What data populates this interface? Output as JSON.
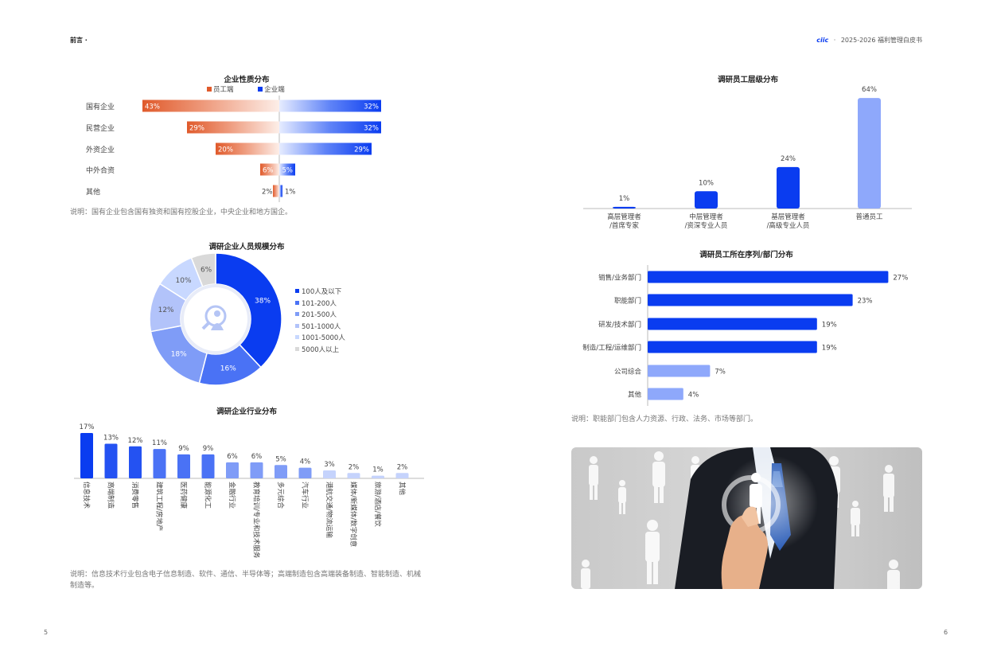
{
  "header": {
    "left": "前言 ·",
    "brand": "ciic",
    "dot": "·",
    "right": "2025-2026 福利管理白皮书"
  },
  "footer": {
    "page_left": "5",
    "page_right": "6"
  },
  "enterprise_nature": {
    "title": "企业性质分布",
    "legend_employee": "员工端",
    "legend_company": "企业端",
    "note": "说明：国有企业包含国有独资和国有控股企业，中央企业和地方国企。",
    "categories": [
      "国有企业",
      "民营企业",
      "外资企业",
      "中外合资",
      "其他"
    ],
    "employee_labels": [
      "43%",
      "29%",
      "20%",
      "6%",
      "2%"
    ],
    "company_labels": [
      "32%",
      "32%",
      "29%",
      "5%",
      "1%"
    ]
  },
  "company_size": {
    "title": "调研企业人员规模分布",
    "slice_labels": [
      "38%",
      "16%",
      "18%",
      "12%",
      "10%",
      "6%"
    ],
    "legend": [
      "100人及以下",
      "101-200人",
      "201-500人",
      "501-1000人",
      "1001-5000人",
      "5000人以上"
    ]
  },
  "industry": {
    "title": "调研企业行业分布",
    "value_labels": [
      "17%",
      "13%",
      "12%",
      "11%",
      "9%",
      "9%",
      "6%",
      "6%",
      "5%",
      "4%",
      "3%",
      "2%",
      "1%",
      "2%"
    ],
    "categories": [
      "信息技术",
      "高端制造",
      "消费零售",
      "建筑工程/房地产",
      "医药健康",
      "能源化工",
      "金融行业",
      "教育培训/专业和技术服务",
      "多元综合",
      "汽车行业",
      "港航交通/物流运输",
      "媒体/新媒体/数字创意",
      "旅游/酒店/餐饮",
      "其他"
    ],
    "note": "说明：信息技术行业包含电子信息制造、软件、通信、半导体等；高端制造包含高端装备制造、智能制造、机械制造等。"
  },
  "employee_level": {
    "title": "调研员工层级分布",
    "value_labels": [
      "1%",
      "10%",
      "24%",
      "64%"
    ],
    "categories": [
      [
        "高层管理者",
        "/首席专家"
      ],
      [
        "中层管理者",
        "/资深专业人员"
      ],
      [
        "基层管理者",
        "/高级专业人员"
      ],
      [
        "普通员工",
        ""
      ]
    ]
  },
  "department": {
    "title": "调研员工所在序列/部门分布",
    "categories": [
      "销售/业务部门",
      "职能部门",
      "研发/技术部门",
      "制造/工程/运维部门",
      "公司综合",
      "其他"
    ],
    "value_labels": [
      "27%",
      "23%",
      "19%",
      "19%",
      "7%",
      "4%"
    ],
    "note": "说明：职能部门包含人力资源、行政、法务、市场等部门。"
  },
  "chart_data": [
    {
      "type": "bar",
      "title": "企业性质分布",
      "categories": [
        "国有企业",
        "民营企业",
        "外资企业",
        "中外合资",
        "其他"
      ],
      "series": [
        {
          "name": "员工端",
          "values": [
            43,
            29,
            20,
            6,
            2
          ]
        },
        {
          "name": "企业端",
          "values": [
            32,
            32,
            29,
            5,
            1
          ]
        }
      ],
      "legend": "top",
      "colors": [
        "#e05a2b",
        "#0a3cf0"
      ]
    },
    {
      "type": "pie",
      "title": "调研企业人员规模分布",
      "categories": [
        "100人及以下",
        "101-200人",
        "201-500人",
        "501-1000人",
        "1001-5000人",
        "5000人以上"
      ],
      "values": [
        38,
        16,
        18,
        12,
        10,
        6
      ],
      "legend": "right",
      "colors": [
        "#0a3cf0",
        "#4a72f5",
        "#7f9cf7",
        "#b2c3fa",
        "#c8d8ff",
        "#d9d9d9"
      ]
    },
    {
      "type": "bar",
      "title": "调研企业行业分布",
      "categories": [
        "信息技术",
        "高端制造",
        "消费零售",
        "建筑工程/房地产",
        "医药健康",
        "能源化工",
        "金融行业",
        "教育培训/专业和技术服务",
        "多元综合",
        "汽车行业",
        "港航交通/物流运输",
        "媒体/新媒体/数字创意",
        "旅游/酒店/餐饮",
        "其他"
      ],
      "values": [
        17,
        13,
        12,
        11,
        9,
        9,
        6,
        6,
        5,
        4,
        3,
        2,
        1,
        2
      ]
    },
    {
      "type": "bar",
      "title": "调研员工层级分布",
      "categories": [
        "高层管理者/首席专家",
        "中层管理者/资深专业人员",
        "基层管理者/高级专业人员",
        "普通员工"
      ],
      "values": [
        1,
        10,
        24,
        64
      ],
      "colors": [
        "#0a3cf0",
        "#0a3cf0",
        "#0a3cf0",
        "#8ea8fb"
      ]
    },
    {
      "type": "bar",
      "title": "调研员工所在序列/部门分布",
      "categories": [
        "销售/业务部门",
        "职能部门",
        "研发/技术部门",
        "制造/工程/运维部门",
        "公司综合",
        "其他"
      ],
      "values": [
        27,
        23,
        19,
        19,
        7,
        4
      ],
      "colors": [
        "#0a3cf0",
        "#0a3cf0",
        "#0a3cf0",
        "#0a3cf0",
        "#8ea8fb",
        "#8ea8fb"
      ]
    }
  ]
}
